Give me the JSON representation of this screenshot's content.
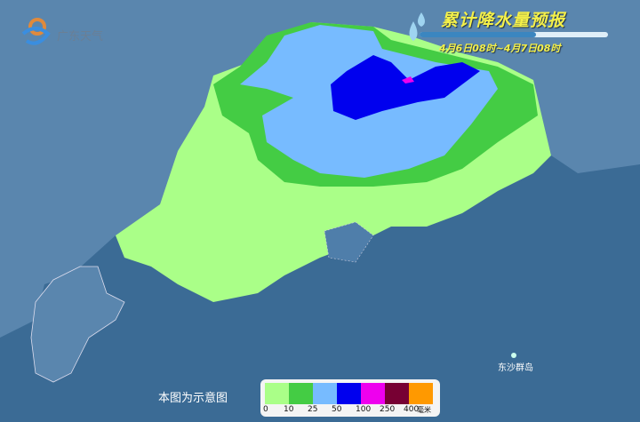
{
  "logo": {
    "text": "广东天气"
  },
  "header": {
    "title": "累计降水量预报",
    "period": "4月6日08时~4月7日08时",
    "progress_fraction": 0.62
  },
  "labels": {
    "island": "东沙群岛",
    "note": "本图为示意图"
  },
  "legend": {
    "colors": [
      "#aaff88",
      "#44cc44",
      "#77bbff",
      "#0000ee",
      "#ee00ee",
      "#770033",
      "#ff9900"
    ],
    "ticks": [
      "0",
      "10",
      "25",
      "50",
      "100",
      "250",
      "400"
    ],
    "unit": "毫米"
  }
}
